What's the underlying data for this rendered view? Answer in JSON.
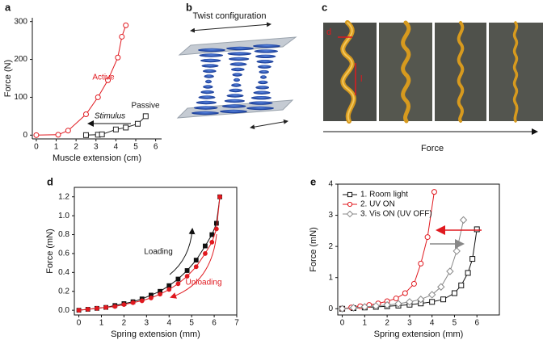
{
  "figure": {
    "panel_labels": [
      "a",
      "b",
      "c",
      "d",
      "e"
    ],
    "twist_label": "Twist configuration",
    "force_label": "Force",
    "photo_labels": [
      "d",
      "l"
    ]
  },
  "chart_data": [
    {
      "type": "line",
      "xlabel": "Muscle extension (cm)",
      "ylabel": "Force (N)",
      "xlim": [
        -0.2,
        6.3
      ],
      "ylim": [
        -10,
        310
      ],
      "xticks": [
        0,
        1,
        2,
        3,
        4,
        5,
        6
      ],
      "yticks": [
        0,
        100,
        200,
        300
      ],
      "annotations": [
        "Active",
        "Passive",
        "Stimulus"
      ],
      "series": [
        {
          "name": "Active",
          "color": "#e0191f",
          "marker": "circle",
          "filled": false,
          "x": [
            0,
            1.1,
            1.6,
            2.5,
            3.1,
            3.6,
            4.1,
            4.3,
            4.5
          ],
          "values": [
            0,
            1,
            12,
            55,
            100,
            145,
            205,
            260,
            290
          ]
        },
        {
          "name": "Passive",
          "color": "#222222",
          "marker": "square",
          "filled": false,
          "x": [
            2.5,
            3.1,
            3.3,
            4.0,
            4.5,
            5.1,
            5.5
          ],
          "values": [
            0,
            1,
            2,
            15,
            20,
            30,
            50
          ]
        }
      ]
    },
    {
      "type": "line",
      "xlabel": "Spring extension (mm)",
      "ylabel": "Force (mN)",
      "xlim": [
        -0.2,
        7
      ],
      "ylim": [
        -0.05,
        1.3
      ],
      "xticks": [
        0,
        1,
        2,
        3,
        4,
        5,
        6,
        7
      ],
      "yticks": [
        {
          "value": 0,
          "label": "0.0"
        },
        0.2,
        0.4,
        0.6,
        0.8,
        {
          "value": 1,
          "label": "1.0"
        },
        1.2
      ],
      "series": [
        {
          "name": "Loading",
          "color": "#111111",
          "marker": "square",
          "filled": true,
          "x": [
            0,
            0.4,
            0.8,
            1.2,
            1.6,
            2.0,
            2.4,
            2.8,
            3.2,
            3.6,
            4.0,
            4.4,
            4.8,
            5.2,
            5.6,
            5.9,
            6.1,
            6.25
          ],
          "values": [
            0,
            0.01,
            0.02,
            0.03,
            0.05,
            0.07,
            0.09,
            0.12,
            0.16,
            0.2,
            0.26,
            0.33,
            0.42,
            0.53,
            0.68,
            0.8,
            0.92,
            1.2
          ]
        },
        {
          "name": "Unloading",
          "color": "#e0191f",
          "marker": "circle",
          "filled": true,
          "x": [
            0,
            0.4,
            0.8,
            1.2,
            1.6,
            2.0,
            2.4,
            2.8,
            3.2,
            3.6,
            4.0,
            4.4,
            4.8,
            5.2,
            5.6,
            5.9,
            6.1,
            6.25
          ],
          "values": [
            0,
            0.01,
            0.02,
            0.03,
            0.04,
            0.06,
            0.08,
            0.1,
            0.13,
            0.17,
            0.22,
            0.28,
            0.36,
            0.46,
            0.6,
            0.72,
            0.86,
            1.2
          ]
        }
      ]
    },
    {
      "type": "line",
      "xlabel": "Spring extension (mm)",
      "ylabel": "Force (mN)",
      "xlim": [
        -0.2,
        7
      ],
      "ylim": [
        -0.2,
        4
      ],
      "xticks": [
        0,
        1,
        2,
        3,
        4,
        5,
        6
      ],
      "yticks": [
        0,
        1,
        2,
        3,
        4
      ],
      "legend": "upper left",
      "series": [
        {
          "name": "1. Room light",
          "color": "#111111",
          "marker": "square",
          "filled": false,
          "x": [
            0,
            0.5,
            1,
            1.5,
            2,
            2.5,
            3,
            3.5,
            4,
            4.5,
            5,
            5.3,
            5.6,
            5.8,
            6
          ],
          "values": [
            0,
            0.02,
            0.04,
            0.06,
            0.08,
            0.1,
            0.13,
            0.17,
            0.22,
            0.3,
            0.5,
            0.75,
            1.15,
            1.6,
            2.55
          ]
        },
        {
          "name": "2. UV ON",
          "color": "#e0191f",
          "marker": "circle",
          "filled": false,
          "x": [
            0,
            0.4,
            0.8,
            1.2,
            1.6,
            2,
            2.4,
            2.8,
            3.2,
            3.5,
            3.8,
            4.1
          ],
          "values": [
            0,
            0.04,
            0.08,
            0.12,
            0.17,
            0.24,
            0.33,
            0.5,
            0.8,
            1.45,
            2.3,
            3.75
          ]
        },
        {
          "name": "3. Vis ON (UV OFF)",
          "color": "#888888",
          "marker": "diamond",
          "filled": false,
          "x": [
            0,
            0.5,
            1,
            1.5,
            2,
            2.5,
            3,
            3.5,
            4,
            4.4,
            4.8,
            5.1,
            5.4
          ],
          "values": [
            0,
            0.03,
            0.06,
            0.09,
            0.12,
            0.16,
            0.22,
            0.3,
            0.45,
            0.7,
            1.2,
            1.85,
            2.85
          ]
        }
      ]
    }
  ]
}
